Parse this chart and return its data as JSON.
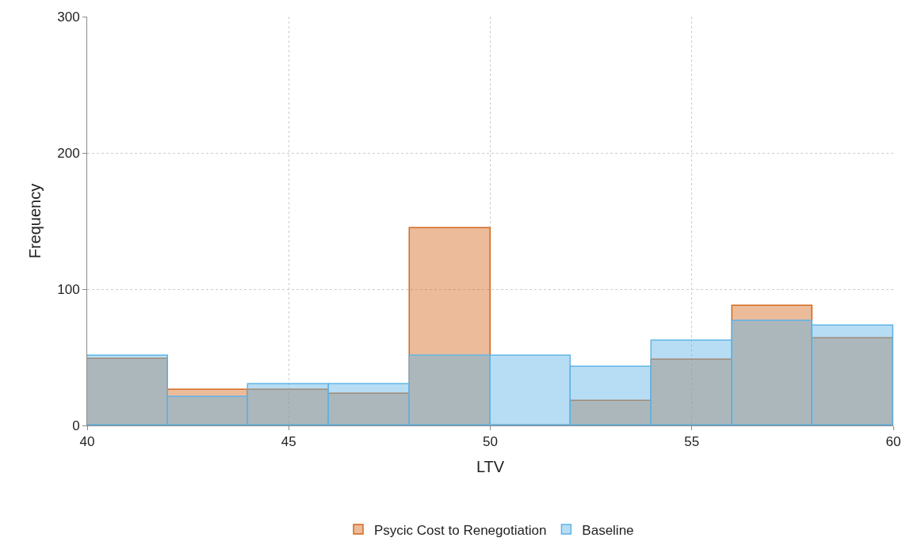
{
  "chart_data": {
    "type": "histogram",
    "xlabel": "LTV",
    "ylabel": "Frequency",
    "bins": [
      40,
      42,
      44,
      46,
      48,
      50,
      52,
      54,
      56,
      58,
      60
    ],
    "series": [
      {
        "name": "Psycic Cost to Renegotiation",
        "color": "#d2691e",
        "values": [
          49,
          26,
          26,
          23,
          145,
          0,
          18,
          48,
          88,
          64
        ]
      },
      {
        "name": "Baseline",
        "color": "#5fb4e6",
        "values": [
          51,
          21,
          30,
          30,
          51,
          51,
          43,
          62,
          77,
          73
        ]
      }
    ],
    "xlim": [
      40,
      60
    ],
    "xticks": [
      40,
      45,
      50,
      55,
      60
    ],
    "ylim": [
      0,
      300
    ],
    "yticks": [
      0,
      100,
      200,
      300
    ],
    "grid": true,
    "legend": "bottom"
  }
}
